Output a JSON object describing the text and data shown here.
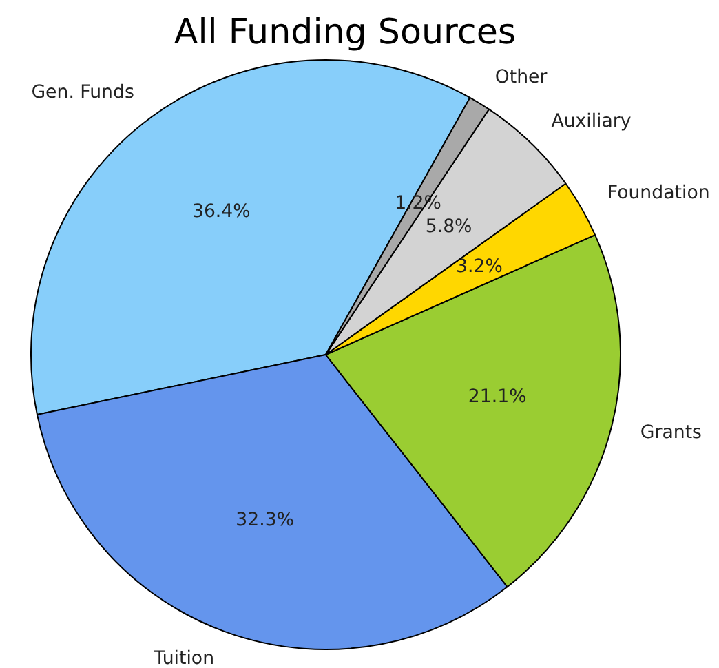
{
  "chart_data": {
    "type": "pie",
    "title": "All Funding Sources",
    "categories": [
      "Gen. Funds",
      "Tuition",
      "Grants",
      "Foundation",
      "Auxiliary",
      "Other"
    ],
    "values": [
      36.4,
      32.3,
      21.1,
      3.2,
      5.8,
      1.2
    ],
    "value_labels": [
      "36.4%",
      "32.3%",
      "21.1%",
      "3.2%",
      "5.8%",
      "1.2%"
    ],
    "colors": [
      "#87cefa",
      "#6495ed",
      "#9acd32",
      "#ffd700",
      "#d3d3d3",
      "#a9a9a9"
    ]
  }
}
